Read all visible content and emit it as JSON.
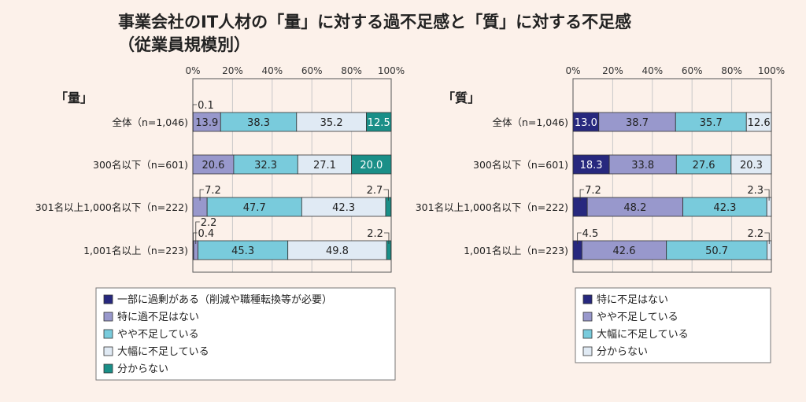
{
  "title_line1": "事業会社のIT人材の「量」に対する過不足感と「質」に対する不足感",
  "title_line2": "（従業員規模別）",
  "chart_data": [
    {
      "type": "bar",
      "orientation": "horizontal-stacked-100",
      "title": "「量」",
      "xticks": [
        "0%",
        "20%",
        "40%",
        "60%",
        "80%",
        "100%"
      ],
      "xlim": [
        0,
        100
      ],
      "grid": true,
      "categories": [
        "全体（n=1,046)",
        "300名以下（n=601)",
        "301名以上1,000名以下（n=222)",
        "1,001名以上（n=223)"
      ],
      "series": [
        {
          "name": "一部に過剰がある（削減や職種転換等が必要）",
          "color": "#27287e",
          "values": [
            0.1,
            0.0,
            0.0,
            0.4
          ]
        },
        {
          "name": "特に過不足はない",
          "color": "#9898cc",
          "values": [
            13.9,
            20.6,
            7.2,
            2.2
          ]
        },
        {
          "name": "やや不足している",
          "color": "#79cbdc",
          "values": [
            38.3,
            32.3,
            47.7,
            45.3
          ]
        },
        {
          "name": "大幅に不足している",
          "color": "#e0eaf4",
          "values": [
            35.2,
            27.1,
            42.3,
            49.8
          ]
        },
        {
          "name": "分からない",
          "color": "#1a8f88",
          "values": [
            12.5,
            20.0,
            2.7,
            2.2
          ]
        }
      ],
      "legend_position": "bottom"
    },
    {
      "type": "bar",
      "orientation": "horizontal-stacked-100",
      "title": "「質」",
      "xticks": [
        "0%",
        "20%",
        "40%",
        "60%",
        "80%",
        "100%"
      ],
      "xlim": [
        0,
        100
      ],
      "grid": true,
      "categories": [
        "全体（n=1,046)",
        "300名以下（n=601)",
        "301名以上1,000名以下（n=222)",
        "1,001名以上（n=223)"
      ],
      "series": [
        {
          "name": "特に不足はない",
          "color": "#27287e",
          "values": [
            13.0,
            18.3,
            7.2,
            4.5
          ]
        },
        {
          "name": "やや不足している",
          "color": "#9898cc",
          "values": [
            38.7,
            33.8,
            48.2,
            42.6
          ]
        },
        {
          "name": "大幅に不足している",
          "color": "#79cbdc",
          "values": [
            35.7,
            27.6,
            42.3,
            50.7
          ]
        },
        {
          "name": "分からない",
          "color": "#e0eaf4",
          "values": [
            12.6,
            20.3,
            2.3,
            2.2
          ]
        }
      ],
      "legend_position": "bottom"
    }
  ]
}
